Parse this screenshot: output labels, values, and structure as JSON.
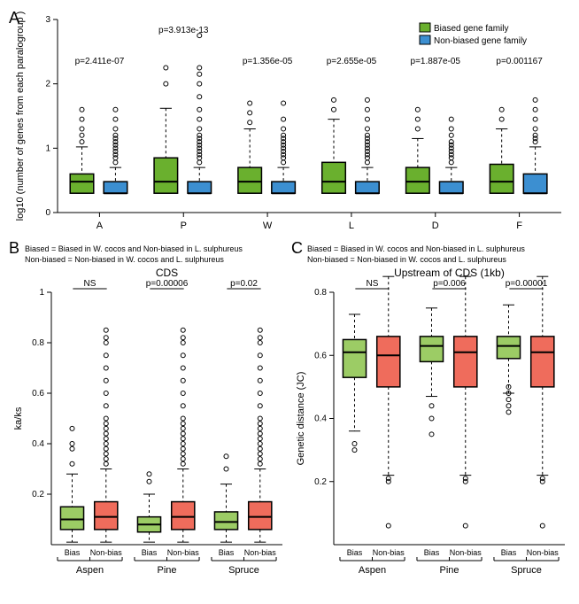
{
  "legend": {
    "biased_label": "Biased gene family",
    "nonbiased_label": "Non-biased gene family",
    "biased_color": "#6ab02e",
    "nonbiased_color": "#3c8fd1"
  },
  "panelA": {
    "label": "A",
    "ylabel": "log10 (number of genes from each paralogroup )",
    "ylim": [
      0,
      3
    ],
    "yticks": [
      0,
      1,
      2,
      3
    ],
    "categories": [
      "A",
      "P",
      "W",
      "L",
      "D",
      "F"
    ],
    "pvalues": [
      "p=2.411e-07",
      "p=3.913e-13",
      "p=1.356e-05",
      "p=2.655e-05",
      "p=1.887e-05",
      "p=0.001167"
    ],
    "biased_color": "#6ab02e",
    "nonbiased_color": "#3c8fd1",
    "boxes_biased": {
      "A": {
        "q1": 0.3,
        "med": 0.48,
        "q3": 0.6,
        "wlo": 0.3,
        "whi": 1.02,
        "out": [
          1.1,
          1.2,
          1.3,
          1.45,
          1.6
        ]
      },
      "P": {
        "q1": 0.3,
        "med": 0.48,
        "q3": 0.85,
        "wlo": 0.3,
        "whi": 1.62,
        "out": [
          2.0,
          2.25
        ]
      },
      "W": {
        "q1": 0.3,
        "med": 0.48,
        "q3": 0.7,
        "wlo": 0.3,
        "whi": 1.3,
        "out": [
          1.4,
          1.55,
          1.7
        ]
      },
      "L": {
        "q1": 0.3,
        "med": 0.48,
        "q3": 0.78,
        "wlo": 0.3,
        "whi": 1.45,
        "out": [
          1.6,
          1.75
        ]
      },
      "D": {
        "q1": 0.3,
        "med": 0.48,
        "q3": 0.7,
        "wlo": 0.3,
        "whi": 1.15,
        "out": [
          1.3,
          1.45,
          1.6
        ]
      },
      "F": {
        "q1": 0.3,
        "med": 0.48,
        "q3": 0.75,
        "wlo": 0.3,
        "whi": 1.3,
        "out": [
          1.45,
          1.6
        ]
      }
    },
    "boxes_nonbiased": {
      "A": {
        "q1": 0.3,
        "med": 0.3,
        "q3": 0.48,
        "wlo": 0.3,
        "whi": 0.7,
        "out": [
          0.78,
          0.85,
          0.9,
          0.95,
          1.0,
          1.05,
          1.1,
          1.15,
          1.2,
          1.3,
          1.45,
          1.6
        ]
      },
      "P": {
        "q1": 0.3,
        "med": 0.3,
        "q3": 0.48,
        "wlo": 0.3,
        "whi": 0.7,
        "out": [
          0.78,
          0.85,
          0.9,
          0.95,
          1.0,
          1.05,
          1.1,
          1.15,
          1.2,
          1.3,
          1.45,
          1.6,
          1.8,
          2.0,
          2.15,
          2.25,
          2.75
        ]
      },
      "W": {
        "q1": 0.3,
        "med": 0.3,
        "q3": 0.48,
        "wlo": 0.3,
        "whi": 0.7,
        "out": [
          0.78,
          0.85,
          0.9,
          0.95,
          1.0,
          1.05,
          1.1,
          1.15,
          1.2,
          1.3,
          1.45,
          1.7
        ]
      },
      "L": {
        "q1": 0.3,
        "med": 0.3,
        "q3": 0.48,
        "wlo": 0.3,
        "whi": 0.7,
        "out": [
          0.78,
          0.85,
          0.9,
          0.95,
          1.0,
          1.05,
          1.1,
          1.15,
          1.2,
          1.3,
          1.45,
          1.6,
          1.75
        ]
      },
      "D": {
        "q1": 0.3,
        "med": 0.3,
        "q3": 0.48,
        "wlo": 0.3,
        "whi": 0.7,
        "out": [
          0.78,
          0.85,
          0.9,
          0.95,
          1.0,
          1.05,
          1.1,
          1.2,
          1.3,
          1.45
        ]
      },
      "F": {
        "q1": 0.3,
        "med": 0.3,
        "q3": 0.6,
        "wlo": 0.3,
        "whi": 1.02,
        "out": [
          1.1,
          1.15,
          1.2,
          1.3,
          1.45,
          1.6,
          1.75
        ]
      }
    }
  },
  "panelB": {
    "label": "B",
    "header1": "Biased = Biased in W. cocos and Non-biased in L. sulphureus",
    "header2": "Non-biased = Non-biased in W. cocos and L. sulphureus",
    "title": "CDS",
    "ylabel": "ka/ks",
    "ylim": [
      0,
      1.0
    ],
    "yticks": [
      0.2,
      0.4,
      0.6,
      0.8,
      1.0
    ],
    "groups": [
      "Aspen",
      "Pine",
      "Spruce"
    ],
    "sub_labels": [
      "Bias",
      "Non-bias"
    ],
    "pvalues": [
      "NS",
      "p=0.00006",
      "p=0.02"
    ],
    "bias_color": "#9ccc65",
    "nonbias_color": "#ef6c5c",
    "boxes": {
      "Aspen_bias": {
        "q1": 0.06,
        "med": 0.1,
        "q3": 0.15,
        "wlo": 0.01,
        "whi": 0.28,
        "out": [
          0.32,
          0.38,
          0.4,
          0.46
        ]
      },
      "Aspen_nonbias": {
        "q1": 0.06,
        "med": 0.11,
        "q3": 0.17,
        "wlo": 0.01,
        "whi": 0.3,
        "out": [
          0.32,
          0.34,
          0.36,
          0.38,
          0.4,
          0.42,
          0.44,
          0.46,
          0.48,
          0.5,
          0.55,
          0.6,
          0.65,
          0.7,
          0.75,
          0.8,
          0.82,
          0.85
        ]
      },
      "Pine_bias": {
        "q1": 0.05,
        "med": 0.08,
        "q3": 0.11,
        "wlo": 0.01,
        "whi": 0.2,
        "out": [
          0.25,
          0.28
        ]
      },
      "Pine_nonbias": {
        "q1": 0.06,
        "med": 0.11,
        "q3": 0.17,
        "wlo": 0.01,
        "whi": 0.3,
        "out": [
          0.32,
          0.34,
          0.36,
          0.38,
          0.4,
          0.42,
          0.44,
          0.46,
          0.48,
          0.5,
          0.55,
          0.6,
          0.65,
          0.7,
          0.75,
          0.8,
          0.82,
          0.85
        ]
      },
      "Spruce_bias": {
        "q1": 0.06,
        "med": 0.09,
        "q3": 0.13,
        "wlo": 0.01,
        "whi": 0.24,
        "out": [
          0.3,
          0.35
        ]
      },
      "Spruce_nonbias": {
        "q1": 0.06,
        "med": 0.11,
        "q3": 0.17,
        "wlo": 0.01,
        "whi": 0.3,
        "out": [
          0.32,
          0.34,
          0.36,
          0.38,
          0.4,
          0.42,
          0.44,
          0.46,
          0.48,
          0.5,
          0.55,
          0.6,
          0.65,
          0.7,
          0.75,
          0.8,
          0.82,
          0.85
        ]
      }
    }
  },
  "panelC": {
    "label": "C",
    "header1": "Biased = Biased in W. cocos and Non-biased in L. sulphureus",
    "header2": "Non-biased = Non-biased in W. cocos and L. sulphureus",
    "title": "Upstream of CDS (1kb)",
    "ylabel": "Genetic distance (JC)",
    "ylim": [
      0,
      0.8
    ],
    "yticks": [
      0.2,
      0.4,
      0.6,
      0.8
    ],
    "groups": [
      "Aspen",
      "Pine",
      "Spruce"
    ],
    "sub_labels": [
      "Bias",
      "Non-bias"
    ],
    "pvalues": [
      "NS",
      "p=0.006",
      "p=0.00001"
    ],
    "bias_color": "#9ccc65",
    "nonbias_color": "#ef6c5c",
    "boxes": {
      "Aspen_bias": {
        "q1": 0.53,
        "med": 0.61,
        "q3": 0.65,
        "wlo": 0.36,
        "whi": 0.73,
        "out": [
          0.3,
          0.32
        ]
      },
      "Aspen_nonbias": {
        "q1": 0.5,
        "med": 0.6,
        "q3": 0.66,
        "wlo": 0.22,
        "whi": 0.85,
        "out": [
          0.2,
          0.21,
          0.06
        ]
      },
      "Pine_bias": {
        "q1": 0.58,
        "med": 0.63,
        "q3": 0.66,
        "wlo": 0.47,
        "whi": 0.75,
        "out": [
          0.35,
          0.4,
          0.44
        ]
      },
      "Pine_nonbias": {
        "q1": 0.5,
        "med": 0.61,
        "q3": 0.66,
        "wlo": 0.22,
        "whi": 0.85,
        "out": [
          0.2,
          0.21,
          0.06
        ]
      },
      "Spruce_bias": {
        "q1": 0.59,
        "med": 0.63,
        "q3": 0.66,
        "wlo": 0.48,
        "whi": 0.76,
        "out": [
          0.42,
          0.44,
          0.46,
          0.48,
          0.5
        ]
      },
      "Spruce_nonbias": {
        "q1": 0.5,
        "med": 0.61,
        "q3": 0.66,
        "wlo": 0.22,
        "whi": 0.85,
        "out": [
          0.2,
          0.21,
          0.06
        ]
      }
    }
  },
  "style": {
    "font_tick": 10,
    "font_label": 11,
    "font_title": 12,
    "font_p": 10,
    "stroke": "#000000",
    "outlier_stroke": "#000000"
  }
}
